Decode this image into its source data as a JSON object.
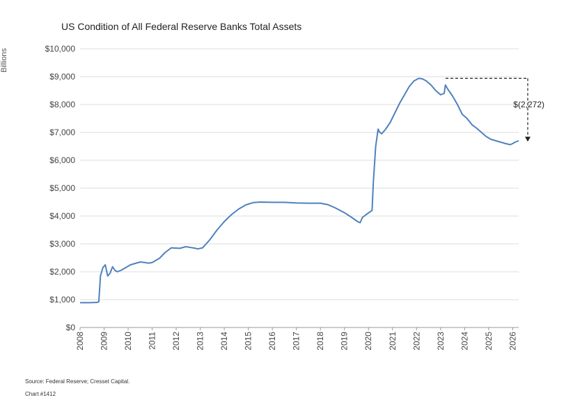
{
  "chart_data": {
    "type": "line",
    "title": "US Condition of All Federal Reserve Banks Total Assets",
    "ylabel": "Billions",
    "xlabel": "",
    "ylim": [
      0,
      10000
    ],
    "xlim": [
      2008,
      2026.25
    ],
    "grid": true,
    "y_ticks": [
      "$0",
      "$1,000",
      "$2,000",
      "$3,000",
      "$4,000",
      "$5,000",
      "$6,000",
      "$7,000",
      "$8,000",
      "$9,000",
      "$10,000"
    ],
    "x_ticks": [
      "2008",
      "2009",
      "2010",
      "2011",
      "2012",
      "2013",
      "2014",
      "2015",
      "2016",
      "2017",
      "2018",
      "2019",
      "2020",
      "2021",
      "2022",
      "2023",
      "2024",
      "2025",
      "2026"
    ],
    "line_color": "#4f81bd",
    "series": [
      {
        "x": [
          2008.0,
          2008.4,
          2008.7,
          2008.78,
          2008.85,
          2008.95,
          2009.05,
          2009.15,
          2009.25,
          2009.35,
          2009.45,
          2009.55,
          2009.7,
          2009.9,
          2010.1,
          2010.3,
          2010.5,
          2010.7,
          2010.85,
          2011.0,
          2011.3,
          2011.55,
          2011.8,
          2011.95,
          2012.0,
          2012.15,
          2012.4,
          2012.6,
          2012.75,
          2012.9,
          2013.1,
          2013.4,
          2013.7,
          2014.0,
          2014.3,
          2014.6,
          2014.9,
          2015.2,
          2015.5,
          2016.0,
          2016.5,
          2017.0,
          2017.5,
          2018.0,
          2018.3,
          2018.6,
          2019.0,
          2019.3,
          2019.55,
          2019.65,
          2019.75,
          2019.9,
          2020.1,
          2020.15,
          2020.2,
          2020.3,
          2020.4,
          2020.45,
          2020.55,
          2020.7,
          2020.9,
          2021.1,
          2021.3,
          2021.5,
          2021.7,
          2021.9,
          2022.1,
          2022.25,
          2022.4,
          2022.6,
          2022.8,
          2023.0,
          2023.15,
          2023.2,
          2023.3,
          2023.5,
          2023.7,
          2023.9,
          2024.1,
          2024.3,
          2024.5,
          2024.7,
          2024.9,
          2025.1,
          2025.3,
          2025.5,
          2025.7,
          2025.9,
          2026.0,
          2026.1,
          2026.25
        ],
        "values": [
          890,
          890,
          900,
          920,
          1850,
          2150,
          2250,
          1850,
          1950,
          2180,
          2050,
          2000,
          2050,
          2150,
          2250,
          2300,
          2350,
          2330,
          2310,
          2330,
          2480,
          2700,
          2860,
          2850,
          2850,
          2840,
          2900,
          2870,
          2850,
          2820,
          2860,
          3150,
          3500,
          3800,
          4050,
          4250,
          4400,
          4480,
          4500,
          4490,
          4490,
          4470,
          4460,
          4460,
          4410,
          4300,
          4120,
          3950,
          3800,
          3760,
          3950,
          4050,
          4170,
          4200,
          5200,
          6500,
          7120,
          7020,
          6950,
          7100,
          7350,
          7700,
          8050,
          8350,
          8650,
          8850,
          8940,
          8920,
          8850,
          8700,
          8500,
          8350,
          8400,
          8700,
          8550,
          8300,
          8000,
          7650,
          7500,
          7280,
          7150,
          7000,
          6850,
          6750,
          6700,
          6650,
          6600,
          6560,
          6600,
          6650,
          6700
        ]
      }
    ],
    "annotation": {
      "label": "$(2,272)",
      "from_value": 8940,
      "to_value": 6668
    }
  },
  "footer": {
    "source": "Source: Federal Reserve; Cresset Capital.",
    "chart_no": "Chart #1412"
  }
}
